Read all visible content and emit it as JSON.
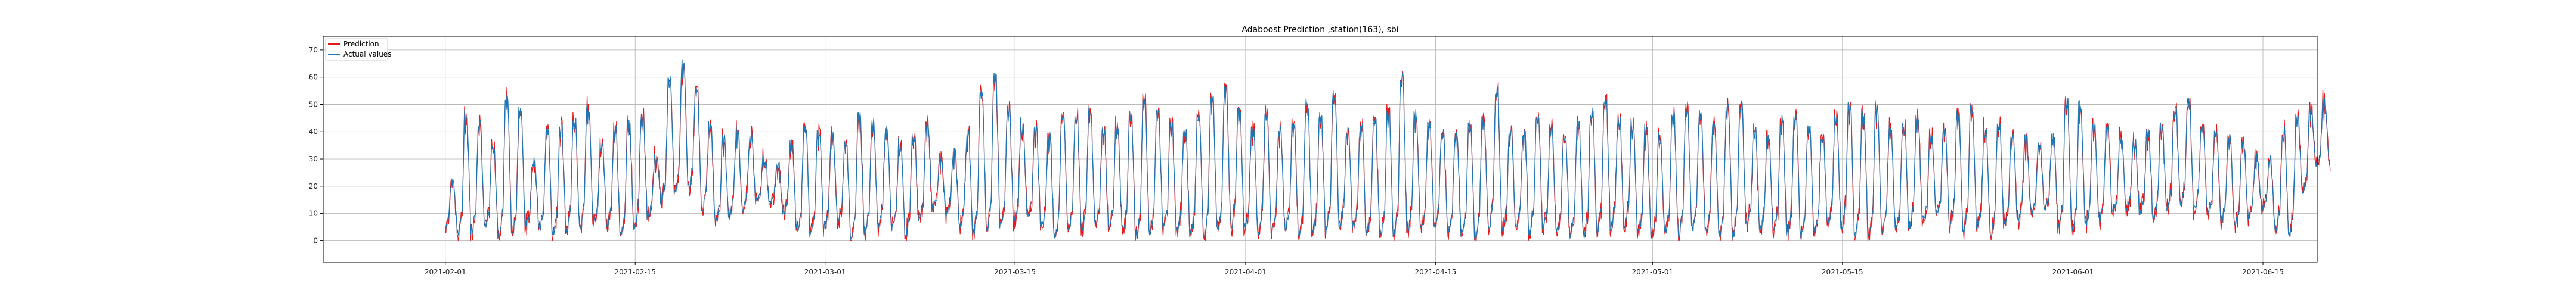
{
  "chart_data": {
    "type": "line",
    "title": "Adaboost Prediction ,station(163), sbi",
    "xlabel": "",
    "ylabel": "",
    "x_range": [
      "2021-01-23",
      "2021-06-19"
    ],
    "ylim": [
      -8,
      75
    ],
    "yticks": [
      0,
      10,
      20,
      30,
      40,
      50,
      60,
      70
    ],
    "xticks": [
      "2021-02-01",
      "2021-02-15",
      "2021-03-01",
      "2021-03-15",
      "2021-04-01",
      "2021-04-15",
      "2021-05-01",
      "2021-05-15",
      "2021-06-01",
      "2021-06-15"
    ],
    "grid": true,
    "legend_position": "top-left",
    "series": [
      {
        "name": "Prediction",
        "color": "#e31a1c"
      },
      {
        "name": "Actual values",
        "color": "#1f77b4"
      }
    ],
    "daily_peak": [
      22,
      45,
      43,
      35,
      52,
      48,
      30,
      40,
      42,
      45,
      48,
      35,
      40,
      42,
      45,
      30,
      58,
      65,
      55,
      42,
      36,
      40,
      38,
      30,
      28,
      35,
      42,
      40,
      38,
      35,
      45,
      42,
      40,
      35,
      38,
      42,
      30,
      32,
      38,
      55,
      60,
      48,
      42,
      40,
      38,
      46,
      45,
      48,
      40,
      42,
      45,
      50,
      48,
      42,
      40,
      45,
      52,
      55,
      48,
      42,
      45,
      40,
      42,
      50,
      45,
      55,
      40,
      42,
      44,
      46,
      60,
      45,
      42,
      40,
      38,
      42,
      44,
      55,
      40,
      38,
      46,
      40,
      38,
      42,
      48,
      52,
      44,
      42,
      40,
      38,
      45,
      48,
      46,
      42,
      48,
      50,
      40,
      38,
      44,
      45,
      42,
      38,
      44,
      50,
      45,
      48,
      40,
      42,
      44,
      38,
      40,
      46,
      48,
      40,
      42,
      38,
      36,
      34,
      38,
      52,
      48,
      42,
      40,
      38,
      36,
      40,
      42,
      48,
      50,
      42,
      40,
      38,
      35,
      30,
      28,
      40,
      44,
      48,
      50
    ],
    "daily_trough": [
      5,
      3,
      4,
      5,
      2,
      3,
      6,
      5,
      3,
      4,
      5,
      8,
      6,
      3,
      5,
      10,
      15,
      18,
      20,
      12,
      8,
      10,
      12,
      15,
      14,
      10,
      4,
      3,
      5,
      8,
      2,
      4,
      6,
      5,
      3,
      8,
      12,
      10,
      6,
      3,
      4,
      6,
      8,
      10,
      5,
      2,
      4,
      3,
      6,
      5,
      4,
      2,
      3,
      5,
      4,
      3,
      2,
      4,
      6,
      5,
      3,
      4,
      5,
      2,
      3,
      4,
      6,
      5,
      3,
      2,
      3,
      4,
      5,
      6,
      4,
      3,
      2,
      5,
      4,
      6,
      3,
      5,
      4,
      3,
      2,
      4,
      5,
      6,
      3,
      2,
      4,
      3,
      5,
      4,
      3,
      2,
      6,
      5,
      4,
      3,
      2,
      4,
      6,
      5,
      3,
      2,
      4,
      5,
      6,
      8,
      10,
      6,
      4,
      5,
      3,
      6,
      8,
      10,
      12,
      5,
      4,
      6,
      8,
      10,
      12,
      10,
      8,
      12,
      14,
      12,
      10,
      8,
      6,
      10,
      12,
      5,
      3,
      18,
      28
    ],
    "caption": ""
  }
}
